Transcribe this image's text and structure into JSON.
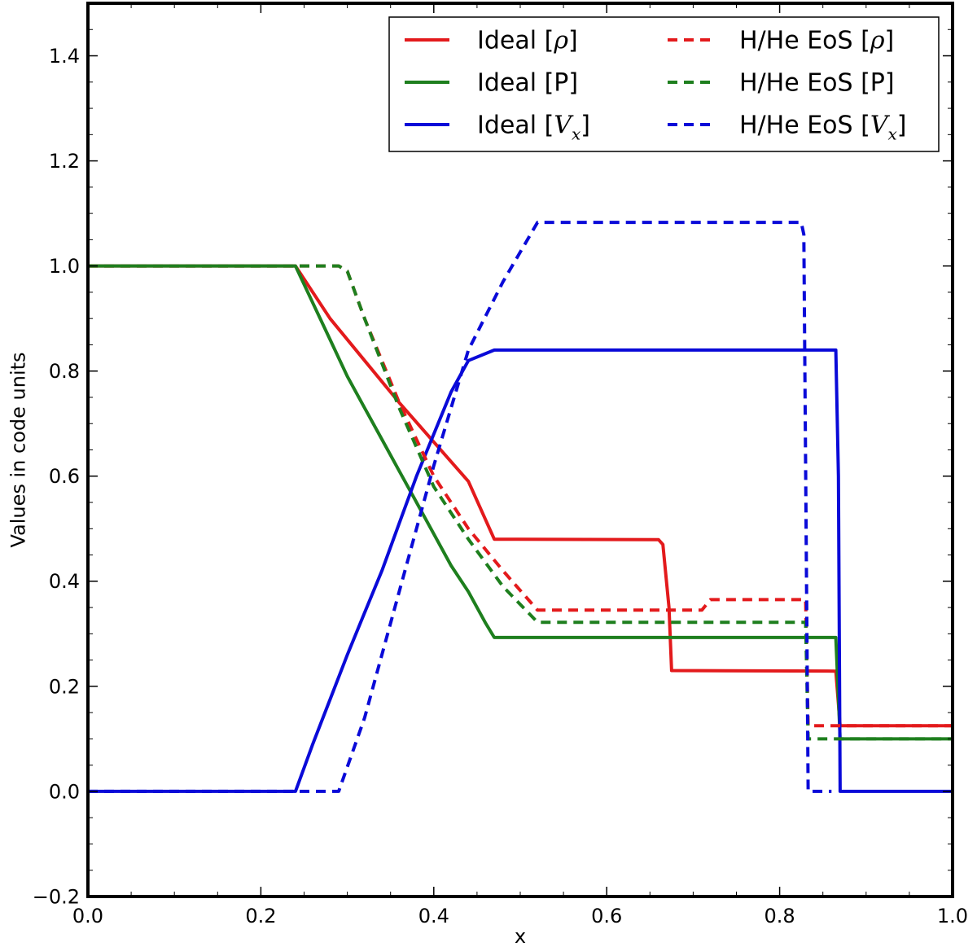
{
  "chart_data": {
    "type": "line",
    "title": "",
    "xlabel": "x",
    "ylabel": "Values in code units",
    "xlim": [
      0.0,
      1.0
    ],
    "ylim": [
      -0.2,
      1.5
    ],
    "xticks": [
      0.0,
      0.2,
      0.4,
      0.6,
      0.8,
      1.0
    ],
    "xtick_labels": [
      "0.0",
      "0.2",
      "0.4",
      "0.6",
      "0.8",
      "1.0"
    ],
    "yticks": [
      -0.2,
      0.0,
      0.2,
      0.4,
      0.6,
      0.8,
      1.0,
      1.2,
      1.4
    ],
    "ytick_labels": [
      "−0.2",
      "0.0",
      "0.2",
      "0.4",
      "0.6",
      "0.8",
      "1.0",
      "1.2",
      "1.4"
    ],
    "grid": false,
    "legend_position": "top-right",
    "legend_columns": 2,
    "series": [
      {
        "name": "Ideal [ρ]",
        "label_prefix": "Ideal [",
        "label_symbol": "ρ",
        "label_sub": "",
        "label_suffix": "]",
        "color": "#e31a1c",
        "style": "solid",
        "points": [
          [
            0.0,
            1.0
          ],
          [
            0.24,
            1.0
          ],
          [
            0.28,
            0.9
          ],
          [
            0.32,
            0.82
          ],
          [
            0.36,
            0.74
          ],
          [
            0.4,
            0.665
          ],
          [
            0.44,
            0.59
          ],
          [
            0.47,
            0.48
          ],
          [
            0.66,
            0.479
          ],
          [
            0.665,
            0.47
          ],
          [
            0.672,
            0.35
          ],
          [
            0.675,
            0.23
          ],
          [
            0.865,
            0.229
          ],
          [
            0.87,
            0.125
          ],
          [
            1.0,
            0.125
          ]
        ]
      },
      {
        "name": "Ideal [P]",
        "label_prefix": "Ideal [P]",
        "label_symbol": "",
        "label_sub": "",
        "label_suffix": "",
        "color": "#1e7f1e",
        "style": "solid",
        "points": [
          [
            0.0,
            1.0
          ],
          [
            0.24,
            1.0
          ],
          [
            0.26,
            0.93
          ],
          [
            0.28,
            0.86
          ],
          [
            0.3,
            0.79
          ],
          [
            0.32,
            0.73
          ],
          [
            0.34,
            0.67
          ],
          [
            0.36,
            0.61
          ],
          [
            0.38,
            0.55
          ],
          [
            0.4,
            0.49
          ],
          [
            0.42,
            0.43
          ],
          [
            0.44,
            0.38
          ],
          [
            0.46,
            0.32
          ],
          [
            0.47,
            0.293
          ],
          [
            0.865,
            0.293
          ],
          [
            0.87,
            0.1
          ],
          [
            1.0,
            0.1
          ]
        ]
      },
      {
        "name": "Ideal [V_x]",
        "label_prefix": "Ideal [",
        "label_symbol": "V",
        "label_sub": "x",
        "label_suffix": "]",
        "color": "#0a0ad8",
        "style": "solid",
        "points": [
          [
            0.0,
            0.0
          ],
          [
            0.24,
            0.0
          ],
          [
            0.26,
            0.09
          ],
          [
            0.28,
            0.175
          ],
          [
            0.3,
            0.26
          ],
          [
            0.32,
            0.34
          ],
          [
            0.34,
            0.42
          ],
          [
            0.36,
            0.51
          ],
          [
            0.38,
            0.6
          ],
          [
            0.4,
            0.68
          ],
          [
            0.42,
            0.76
          ],
          [
            0.44,
            0.82
          ],
          [
            0.47,
            0.84
          ],
          [
            0.865,
            0.84
          ],
          [
            0.868,
            0.6
          ],
          [
            0.87,
            0.0
          ],
          [
            1.0,
            0.0
          ]
        ]
      },
      {
        "name": "H/He EoS [ρ]",
        "label_prefix": "H/He EoS [",
        "label_symbol": "ρ",
        "label_sub": "",
        "label_suffix": "]",
        "color": "#e31a1c",
        "style": "dashed",
        "points": [
          [
            0.0,
            1.0
          ],
          [
            0.29,
            1.0
          ],
          [
            0.3,
            0.99
          ],
          [
            0.32,
            0.9
          ],
          [
            0.36,
            0.74
          ],
          [
            0.4,
            0.6
          ],
          [
            0.44,
            0.5
          ],
          [
            0.48,
            0.42
          ],
          [
            0.52,
            0.345
          ],
          [
            0.71,
            0.345
          ],
          [
            0.72,
            0.365
          ],
          [
            0.83,
            0.365
          ],
          [
            0.833,
            0.125
          ],
          [
            1.0,
            0.125
          ]
        ]
      },
      {
        "name": "H/He EoS [P]",
        "label_prefix": "H/He EoS [P]",
        "label_symbol": "",
        "label_sub": "",
        "label_suffix": "",
        "color": "#1e7f1e",
        "style": "dashed",
        "points": [
          [
            0.0,
            1.0
          ],
          [
            0.29,
            1.0
          ],
          [
            0.3,
            0.99
          ],
          [
            0.32,
            0.9
          ],
          [
            0.36,
            0.73
          ],
          [
            0.4,
            0.58
          ],
          [
            0.44,
            0.48
          ],
          [
            0.48,
            0.39
          ],
          [
            0.52,
            0.322
          ],
          [
            0.83,
            0.322
          ],
          [
            0.833,
            0.1
          ],
          [
            1.0,
            0.1
          ]
        ]
      },
      {
        "name": "H/He EoS [V_x]",
        "label_prefix": "H/He EoS [",
        "label_symbol": "V",
        "label_sub": "x",
        "label_suffix": "]",
        "color": "#0a0ad8",
        "style": "dashed",
        "points": [
          [
            0.0,
            0.0
          ],
          [
            0.29,
            0.0
          ],
          [
            0.32,
            0.14
          ],
          [
            0.36,
            0.38
          ],
          [
            0.4,
            0.62
          ],
          [
            0.44,
            0.84
          ],
          [
            0.48,
            0.97
          ],
          [
            0.52,
            1.083
          ],
          [
            0.825,
            1.083
          ],
          [
            0.828,
            1.06
          ],
          [
            0.833,
            0.0
          ],
          [
            0.86,
            0.0
          ]
        ]
      }
    ]
  }
}
